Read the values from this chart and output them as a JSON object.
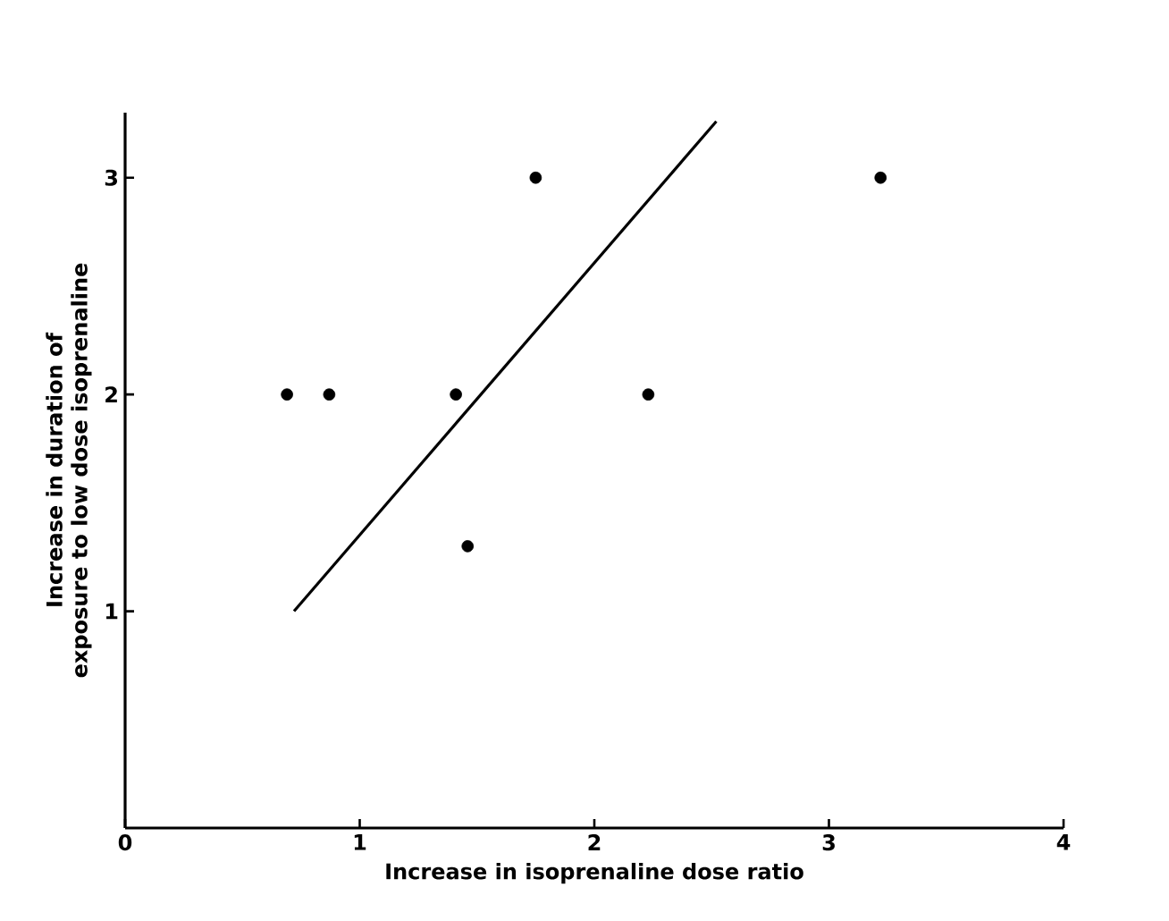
{
  "chart_data": {
    "type": "scatter",
    "xlabel": "Increase in isoprenaline dose ratio",
    "ylabel": "Increase in duration of\nexposure to low dose isoprenaline",
    "xlim": [
      0,
      4
    ],
    "ylim": [
      0,
      3.3
    ],
    "xticks": [
      0,
      1,
      2,
      3,
      4
    ],
    "yticks": [
      1,
      2,
      3
    ],
    "marker": "circle",
    "grid": false,
    "series": [
      {
        "color": "#000000",
        "x": [
          0.69,
          0.87,
          1.41,
          1.46,
          1.75,
          2.23,
          3.22
        ],
        "values": [
          2.0,
          2.0,
          2.0,
          1.3,
          3.0,
          2.0,
          3.0
        ]
      },
      {
        "type": "line",
        "color": "#000000",
        "marker": "none",
        "line_style": "solid",
        "x": [
          0.72,
          2.52
        ],
        "values": [
          1.0,
          3.26
        ]
      }
    ]
  }
}
